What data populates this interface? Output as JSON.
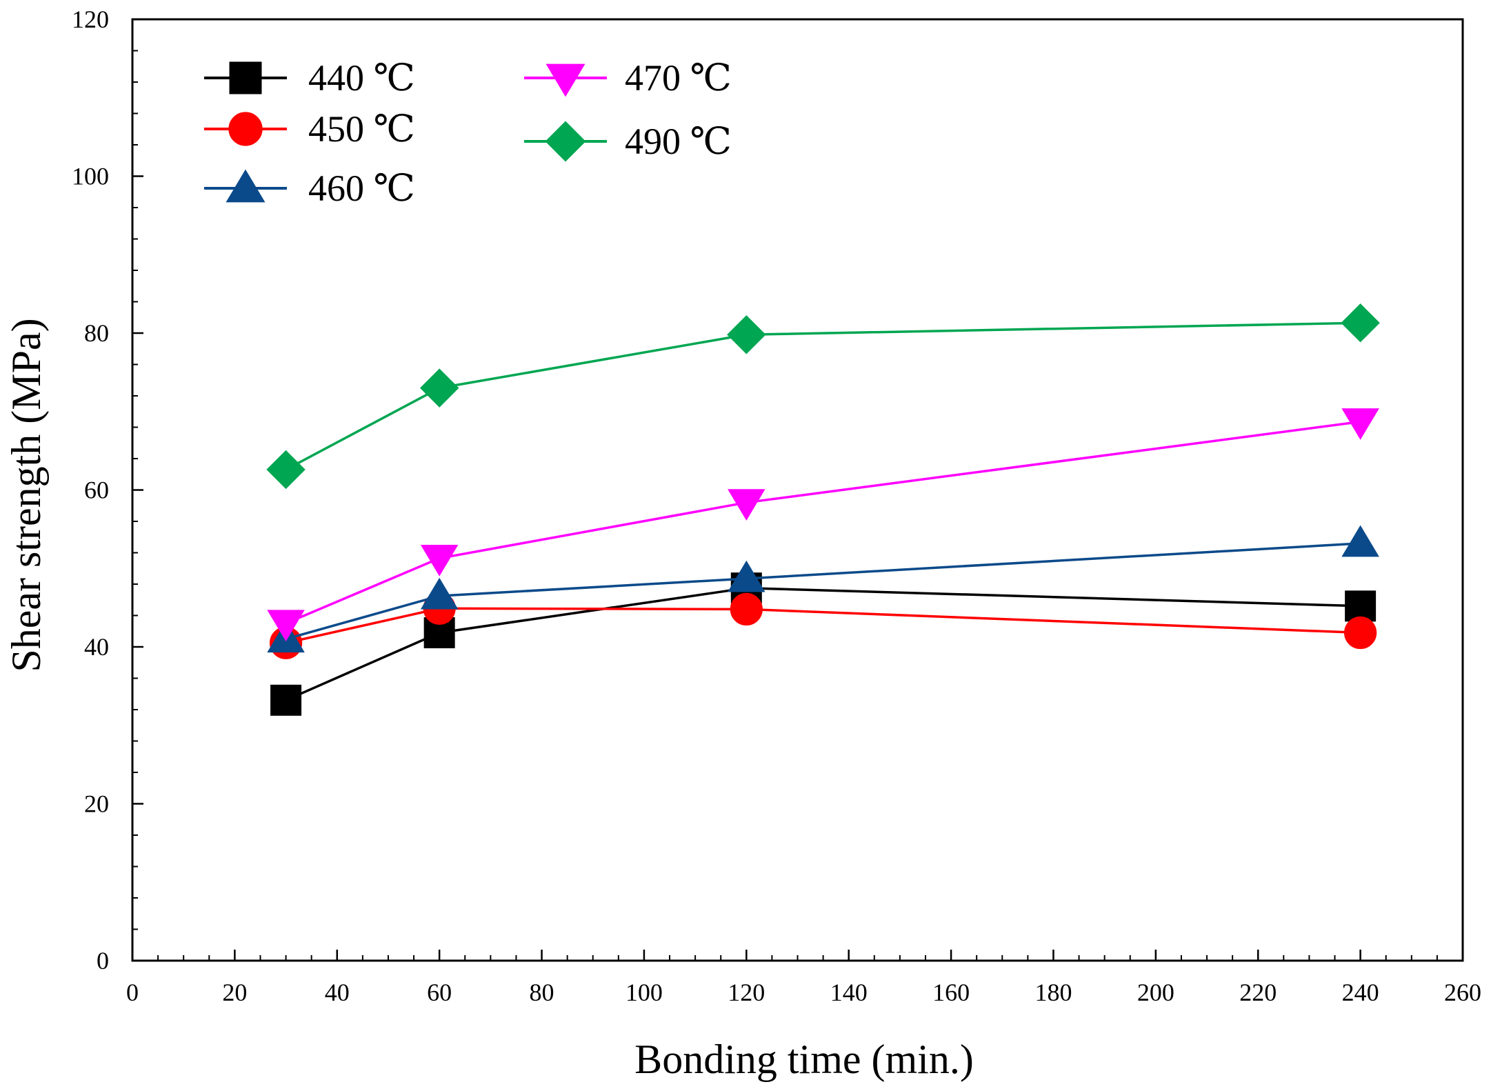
{
  "chart_data": {
    "type": "line",
    "title": "",
    "xlabel": "Bonding time (min.)",
    "ylabel": "Shear strength (MPa)",
    "xlim": [
      0,
      260
    ],
    "ylim": [
      0,
      120
    ],
    "xticks": [
      0,
      20,
      40,
      60,
      80,
      100,
      120,
      140,
      160,
      180,
      200,
      220,
      240,
      260
    ],
    "yticks": [
      0,
      20,
      40,
      60,
      80,
      100,
      120
    ],
    "grid": false,
    "legend_position": "top-left",
    "x": [
      30,
      60,
      120,
      240
    ],
    "series": [
      {
        "name": "440 ℃",
        "values": [
          33.2,
          41.8,
          47.5,
          45.2
        ],
        "color": "#000000",
        "marker": "square"
      },
      {
        "name": "450 ℃",
        "values": [
          40.5,
          44.9,
          44.8,
          41.8
        ],
        "color": "#ff0000",
        "marker": "circle"
      },
      {
        "name": "460 ℃",
        "values": [
          41.0,
          46.5,
          48.7,
          53.2
        ],
        "color": "#0b4a8a",
        "marker": "triangle-up"
      },
      {
        "name": "470 ℃",
        "values": [
          43.0,
          51.3,
          58.4,
          68.7
        ],
        "color": "#ff00ff",
        "marker": "triangle-down"
      },
      {
        "name": "490 ℃",
        "values": [
          62.6,
          73.0,
          79.8,
          81.3
        ],
        "color": "#00a651",
        "marker": "diamond"
      }
    ]
  }
}
